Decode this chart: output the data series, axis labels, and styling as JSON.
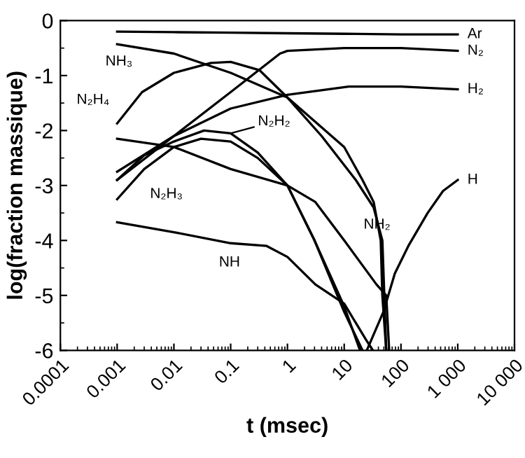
{
  "chart_data": {
    "type": "line",
    "xlabel": "t (msec)",
    "ylabel": "log(fraction massique)",
    "log": "x",
    "xlim": [
      0.0001,
      10000
    ],
    "ylim": [
      -6,
      0
    ],
    "xticks": [
      0.0001,
      0.001,
      0.01,
      0.1,
      1,
      10,
      100,
      {
        "value": 1000,
        "label": "1 000"
      },
      {
        "value": 10000,
        "label": "10 000"
      }
    ],
    "yticks": [
      -6,
      -5,
      -4,
      -3,
      -2,
      -1,
      0
    ],
    "grid": false,
    "legend": false,
    "marker": "none",
    "line_style": "solid",
    "series": [
      {
        "color": "#000000",
        "x": [
          0.001,
          0.01,
          0.1,
          1,
          10,
          100,
          1000
        ],
        "values": [
          -0.2,
          -0.21,
          -0.22,
          -0.23,
          -0.24,
          -0.25,
          -0.25
        ]
      },
      {
        "color": "#000000",
        "x": [
          0.001,
          0.01,
          0.1,
          0.74,
          1,
          10,
          100,
          1000
        ],
        "values": [
          -2.9,
          -2.1,
          -1.3,
          -0.6,
          -0.55,
          -0.5,
          -0.5,
          -0.55
        ]
      },
      {
        "color": "#000000",
        "x": [
          0.001,
          0.01,
          0.1,
          1,
          12,
          100,
          1000
        ],
        "values": [
          -2.75,
          -2.1,
          -1.6,
          -1.35,
          -1.2,
          -1.2,
          -1.25
        ]
      },
      {
        "color": "#000000",
        "x": [
          0.001,
          0.01,
          0.1,
          1,
          10,
          21,
          33,
          44,
          47,
          55
        ],
        "values": [
          -0.43,
          -0.6,
          -0.95,
          -1.4,
          -2.3,
          -2.9,
          -3.3,
          -4.0,
          -5.0,
          -6.0
        ]
      },
      {
        "color": "#000000",
        "x": [
          0.001,
          0.00275,
          0.01,
          0.045,
          0.1,
          0.32,
          1,
          4,
          16,
          33,
          47,
          55
        ],
        "values": [
          -1.87,
          -1.3,
          -0.95,
          -0.77,
          -0.75,
          -0.9,
          -1.4,
          -2.1,
          -2.9,
          -3.4,
          -4.0,
          -6.0
        ]
      },
      {
        "color": "#000000",
        "x": [
          0.001,
          0.003,
          0.01,
          0.034,
          0.1,
          0.3,
          1,
          3,
          10,
          19
        ],
        "values": [
          -2.9,
          -2.45,
          -2.2,
          -2.0,
          -2.05,
          -2.4,
          -3.0,
          -4.0,
          -5.2,
          -6.0
        ]
      },
      {
        "color": "#000000",
        "x": [
          0.001,
          0.003,
          0.01,
          0.03,
          0.1,
          0.3,
          1,
          3,
          10,
          21
        ],
        "values": [
          -3.25,
          -2.7,
          -2.3,
          -2.15,
          -2.2,
          -2.5,
          -3.0,
          -4.0,
          -5.3,
          -6.0
        ]
      },
      {
        "color": "#000000",
        "x": [
          0.001,
          0.01,
          0.1,
          1,
          3.1,
          10,
          37,
          55,
          62
        ],
        "values": [
          -2.15,
          -2.3,
          -2.7,
          -3.0,
          -3.3,
          -4.0,
          -4.8,
          -5.0,
          -6.0
        ]
      },
      {
        "color": "#000000",
        "x": [
          0.001,
          0.01,
          0.1,
          0.43,
          1,
          3.1,
          10,
          24,
          32
        ],
        "values": [
          -3.67,
          -3.85,
          -4.05,
          -4.1,
          -4.3,
          -4.8,
          -5.15,
          -5.8,
          -6.0
        ]
      },
      {
        "color": "#000000",
        "x": [
          25,
          49,
          78,
          135,
          295,
          550,
          1000
        ],
        "values": [
          -6.0,
          -5.3,
          -4.6,
          -4.1,
          -3.5,
          -3.1,
          -2.9
        ]
      }
    ],
    "annotations": [
      {
        "text": "Ar",
        "x": 1000,
        "y": -0.25
      },
      {
        "text": "N₂",
        "x": 1000,
        "y": -0.55
      },
      {
        "text": "H₂",
        "x": 1000,
        "y": -1.25
      },
      {
        "text": "H",
        "x": 1000,
        "y": -2.9
      },
      {
        "text": "NH₃",
        "x": 0.001,
        "y": -0.43
      },
      {
        "text": "N₂H₄",
        "x": 0.001,
        "y": -1.87
      },
      {
        "text": "N₂H₂",
        "x": 0.1,
        "y": -2.05
      },
      {
        "text": "N₂H₃",
        "x": 0.003,
        "y": -2.7
      },
      {
        "text": "NH₂",
        "x": 10,
        "y": -4.0
      },
      {
        "text": "NH",
        "x": 0.1,
        "y": -4.05
      }
    ]
  }
}
